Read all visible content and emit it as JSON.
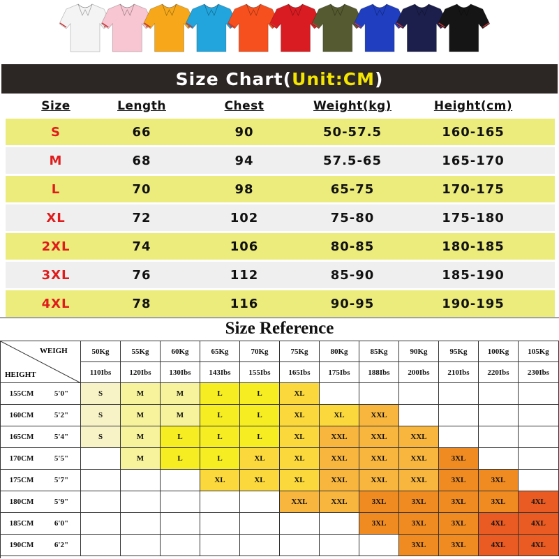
{
  "header": {
    "title_parts": [
      "Size Chart(",
      "Unit:CM",
      ")"
    ]
  },
  "size_chart": {
    "columns": [
      "Size",
      "Length",
      "Chest",
      "Weight(kg)",
      "Height(cm)"
    ],
    "rows": [
      [
        "S",
        "66",
        "90",
        "50-57.5",
        "160-165"
      ],
      [
        "M",
        "68",
        "94",
        "57.5-65",
        "165-170"
      ],
      [
        "L",
        "70",
        "98",
        "65-75",
        "170-175"
      ],
      [
        "XL",
        "72",
        "102",
        "75-80",
        "175-180"
      ],
      [
        "2XL",
        "74",
        "106",
        "80-85",
        "180-185"
      ],
      [
        "3XL",
        "76",
        "112",
        "85-90",
        "185-190"
      ],
      [
        "4XL",
        "78",
        "116",
        "90-95",
        "190-195"
      ]
    ]
  },
  "size_reference": {
    "title": "Size Reference",
    "corner_top": "WEIGH",
    "corner_bottom": "HEIGHT",
    "weights_kg": [
      "50Kg",
      "55Kg",
      "60Kg",
      "65Kg",
      "70Kg",
      "75Kg",
      "80Kg",
      "85Kg",
      "90Kg",
      "95Kg",
      "100Kg",
      "105Kg"
    ],
    "weights_lbs": [
      "110Ibs",
      "120Ibs",
      "130Ibs",
      "143Ibs",
      "155Ibs",
      "165Ibs",
      "175Ibs",
      "188Ibs",
      "200Ibs",
      "210Ibs",
      "220Ibs",
      "230Ibs"
    ],
    "rows": [
      {
        "cm": "155CM",
        "ft": "5'0\"",
        "sizes": [
          "S",
          "M",
          "M",
          "L",
          "L",
          "XL",
          null,
          null,
          null,
          null,
          null,
          null
        ]
      },
      {
        "cm": "160CM",
        "ft": "5'2\"",
        "sizes": [
          "S",
          "M",
          "M",
          "L",
          "L",
          "XL",
          "XL",
          "XXL",
          null,
          null,
          null,
          null
        ]
      },
      {
        "cm": "165CM",
        "ft": "5'4\"",
        "sizes": [
          "S",
          "M",
          "L",
          "L",
          "L",
          "XL",
          "XXL",
          "XXL",
          "XXL",
          null,
          null,
          null
        ]
      },
      {
        "cm": "170CM",
        "ft": "5'5\"",
        "sizes": [
          null,
          "M",
          "L",
          "L",
          "XL",
          "XL",
          "XXL",
          "XXL",
          "XXL",
          "3XL",
          null,
          null
        ]
      },
      {
        "cm": "175CM",
        "ft": "5'7\"",
        "sizes": [
          null,
          null,
          null,
          "XL",
          "XL",
          "XL",
          "XXL",
          "XXL",
          "XXL",
          "3XL",
          "3XL",
          null
        ]
      },
      {
        "cm": "180CM",
        "ft": "5'9\"",
        "sizes": [
          null,
          null,
          null,
          null,
          null,
          "XXL",
          "XXL",
          "3XL",
          "3XL",
          "3XL",
          "3XL",
          "4XL"
        ]
      },
      {
        "cm": "185CM",
        "ft": "6'0\"",
        "sizes": [
          null,
          null,
          null,
          null,
          null,
          null,
          null,
          "3XL",
          "3XL",
          "3XL",
          "4XL",
          "4XL"
        ]
      },
      {
        "cm": "190CM",
        "ft": "6'2\"",
        "sizes": [
          null,
          null,
          null,
          null,
          null,
          null,
          null,
          null,
          "3XL",
          "3XL",
          "4XL",
          "4XL"
        ]
      }
    ],
    "size_colors": {
      "S": "#f7f3c6",
      "M": "#f7f39c",
      "L": "#f6ee22",
      "XL": "#fbd83c",
      "XXL": "#f8b63e",
      "3XL": "#f08b22",
      "4XL": "#e95b22"
    }
  }
}
